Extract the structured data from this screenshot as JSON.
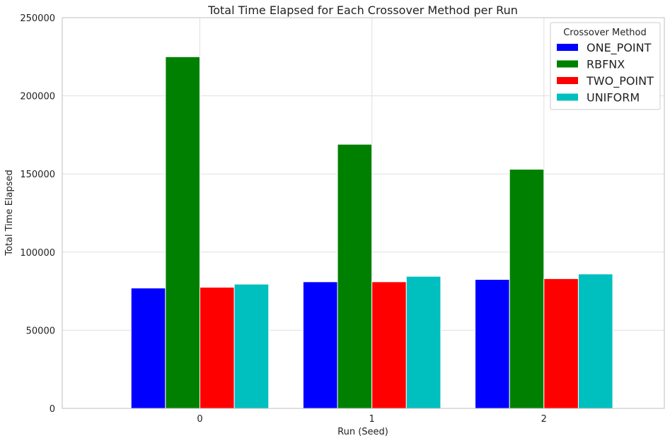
{
  "chart_data": {
    "type": "bar",
    "title": "Total Time Elapsed for Each Crossover Method per Run",
    "xlabel": "Run (Seed)",
    "ylabel": "Total Time Elapsed",
    "categories": [
      "0",
      "1",
      "2"
    ],
    "series": [
      {
        "name": "ONE_POINT",
        "color": "#0000ff",
        "values": [
          77000,
          81000,
          82500
        ]
      },
      {
        "name": "RBFNX",
        "color": "#008000",
        "values": [
          225000,
          169000,
          153000
        ]
      },
      {
        "name": "TWO_POINT",
        "color": "#ff0000",
        "values": [
          77500,
          81000,
          83000
        ]
      },
      {
        "name": "UNIFORM",
        "color": "#00bfbf",
        "values": [
          79500,
          84500,
          86000
        ]
      }
    ],
    "ylim": [
      0,
      250000
    ],
    "yticks": [
      "0",
      "50000",
      "100000",
      "150000",
      "200000",
      "250000"
    ],
    "grid": true,
    "legend": {
      "title": "Crossover Method",
      "position": "top-right"
    }
  }
}
